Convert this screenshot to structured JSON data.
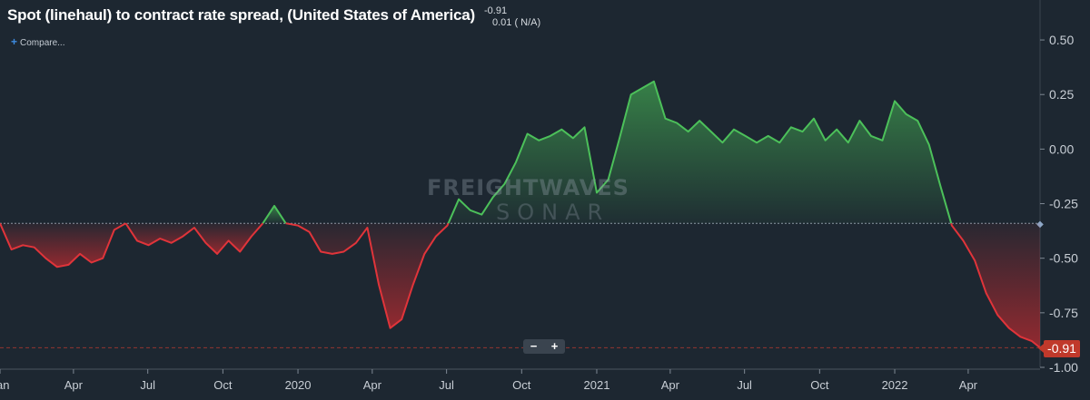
{
  "header": {
    "title": "Spot (linehaul) to contract rate spread, (United States of America)",
    "current_value": "-0.91",
    "change_text": "0.01 ( N/A)",
    "compare_label": "Compare..."
  },
  "watermark": {
    "line1": "FREIGHTWAVES",
    "line2": "SONAR"
  },
  "zoom_controls": {
    "zoom_out": "−",
    "zoom_in": "+"
  },
  "last_value_badge": "-0.91",
  "colors": {
    "positive": "#4cc05a",
    "negative": "#e0343a",
    "background": "#1d2731"
  },
  "chart_data": {
    "type": "area",
    "baseline": -0.34,
    "xlim": [
      "2019-01-01",
      "2022-06-28"
    ],
    "ylim": [
      -1.0,
      0.6
    ],
    "y_ticks": [
      0.5,
      0.25,
      0.0,
      -0.25,
      -0.5,
      -0.75,
      -1.0
    ],
    "y_tick_labels": [
      "0.50",
      "0.25",
      "0.00",
      "-0.25",
      "-0.50",
      "-0.75",
      "-1.00"
    ],
    "x_ticks": [
      {
        "date": "2019-01-01",
        "label": "Jan"
      },
      {
        "date": "2019-04-01",
        "label": "Apr"
      },
      {
        "date": "2019-07-01",
        "label": "Jul"
      },
      {
        "date": "2019-10-01",
        "label": "Oct"
      },
      {
        "date": "2020-01-01",
        "label": "2020"
      },
      {
        "date": "2020-04-01",
        "label": "Apr"
      },
      {
        "date": "2020-07-01",
        "label": "Jul"
      },
      {
        "date": "2020-10-01",
        "label": "Oct"
      },
      {
        "date": "2021-01-01",
        "label": "2021"
      },
      {
        "date": "2021-04-01",
        "label": "Apr"
      },
      {
        "date": "2021-07-01",
        "label": "Jul"
      },
      {
        "date": "2021-10-01",
        "label": "Oct"
      },
      {
        "date": "2022-01-01",
        "label": "2022"
      },
      {
        "date": "2022-04-01",
        "label": "Apr"
      }
    ],
    "series": [
      {
        "x": [
          "2019-01-01",
          "2019-01-15",
          "2019-01-29",
          "2019-02-12",
          "2019-02-26",
          "2019-03-12",
          "2019-03-26",
          "2019-04-09",
          "2019-04-23",
          "2019-05-07",
          "2019-05-21",
          "2019-06-04",
          "2019-06-18",
          "2019-07-02",
          "2019-07-16",
          "2019-07-30",
          "2019-08-13",
          "2019-08-27",
          "2019-09-10",
          "2019-09-24",
          "2019-10-08",
          "2019-10-22",
          "2019-11-05",
          "2019-11-19",
          "2019-12-03",
          "2019-12-17",
          "2020-01-01",
          "2020-01-15",
          "2020-01-29",
          "2020-02-12",
          "2020-02-26",
          "2020-03-12",
          "2020-03-26",
          "2020-04-09",
          "2020-04-23",
          "2020-05-07",
          "2020-05-21",
          "2020-06-04",
          "2020-06-18",
          "2020-07-02",
          "2020-07-16",
          "2020-07-30",
          "2020-08-13",
          "2020-08-27",
          "2020-09-10",
          "2020-09-24",
          "2020-10-08",
          "2020-10-22",
          "2020-11-05",
          "2020-11-19",
          "2020-12-03",
          "2020-12-17",
          "2021-01-01",
          "2021-01-15",
          "2021-01-29",
          "2021-02-12",
          "2021-02-26",
          "2021-03-12",
          "2021-03-26",
          "2021-04-09",
          "2021-04-23",
          "2021-05-07",
          "2021-05-21",
          "2021-06-04",
          "2021-06-18",
          "2021-07-02",
          "2021-07-16",
          "2021-07-30",
          "2021-08-13",
          "2021-08-27",
          "2021-09-10",
          "2021-09-24",
          "2021-10-08",
          "2021-10-22",
          "2021-11-05",
          "2021-11-19",
          "2021-12-03",
          "2021-12-17",
          "2022-01-01",
          "2022-01-15",
          "2022-01-29",
          "2022-02-12",
          "2022-02-26",
          "2022-03-12",
          "2022-03-26",
          "2022-04-09",
          "2022-04-23",
          "2022-05-07",
          "2022-05-21",
          "2022-06-04",
          "2022-06-18",
          "2022-06-28"
        ],
        "y": [
          -0.34,
          -0.46,
          -0.44,
          -0.45,
          -0.5,
          -0.54,
          -0.53,
          -0.48,
          -0.52,
          -0.5,
          -0.37,
          -0.34,
          -0.42,
          -0.44,
          -0.41,
          -0.43,
          -0.4,
          -0.36,
          -0.43,
          -0.48,
          -0.42,
          -0.47,
          -0.4,
          -0.34,
          -0.26,
          -0.34,
          -0.35,
          -0.38,
          -0.47,
          -0.48,
          -0.47,
          -0.43,
          -0.36,
          -0.62,
          -0.82,
          -0.78,
          -0.62,
          -0.48,
          -0.4,
          -0.35,
          -0.23,
          -0.28,
          -0.3,
          -0.22,
          -0.16,
          -0.06,
          0.07,
          0.04,
          0.06,
          0.09,
          0.05,
          0.1,
          -0.2,
          -0.14,
          0.05,
          0.25,
          0.28,
          0.31,
          0.14,
          0.12,
          0.08,
          0.13,
          0.08,
          0.03,
          0.09,
          0.06,
          0.03,
          0.06,
          0.03,
          0.1,
          0.08,
          0.14,
          0.04,
          0.09,
          0.03,
          0.13,
          0.06,
          0.04,
          0.22,
          0.16,
          0.13,
          0.02,
          -0.17,
          -0.35,
          -0.42,
          -0.51,
          -0.66,
          -0.76,
          -0.82,
          -0.86,
          -0.88,
          -0.91
        ]
      }
    ]
  }
}
